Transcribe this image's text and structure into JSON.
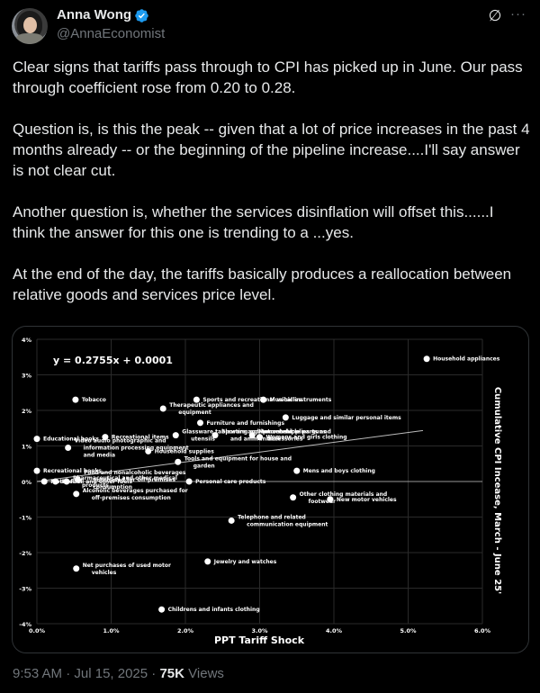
{
  "post": {
    "author_name": "Anna Wong",
    "author_handle": "@AnnaEconomist",
    "verified": true,
    "icons": {
      "grok": "grok-icon",
      "more": "more-icon",
      "verified": "verified-badge-icon"
    },
    "more_label": "···",
    "grok_label": "∅",
    "paragraphs": [
      "Clear signs that tariffs pass through to CPI has picked up in June. Our pass through coefficient rose from 0.20 to 0.28.",
      "Question is, is this the peak -- given that a lot of price increases in the past 4 months already -- or the beginning of the pipeline increase....I'll say answer is not clear cut.",
      "Another question is, whether the services disinflation will offset this......I think the answer for this one is trending to a ...yes.",
      "At the end of the day, the tariffs basically produces a reallocation between relative goods and services price level."
    ],
    "time": "9:53 AM",
    "separator": "·",
    "date": "Jul 15, 2025",
    "views_count": "75K",
    "views_label": "Views"
  },
  "chart_data": {
    "type": "scatter",
    "title": "",
    "annotation": "y = 0.2755x + 0.0001",
    "xlabel": "PPT Tariff Shock",
    "ylabel": "Cumulative CPI Incease, March - June 25'",
    "xlim": [
      0,
      6
    ],
    "ylim": [
      -4,
      4
    ],
    "x_ticks": [
      "0.0%",
      "1.0%",
      "2.0%",
      "3.0%",
      "4.0%",
      "5.0%",
      "6.0%"
    ],
    "y_ticks": [
      "4%",
      "3%",
      "2%",
      "1%",
      "0%",
      "-1%",
      "-2%",
      "-3%",
      "-4%"
    ],
    "grid": true,
    "trendline": {
      "slope": 0.2755,
      "intercept": 0.0001,
      "x_range": [
        0,
        5.2
      ]
    },
    "colors": {
      "background": "#000000",
      "points": "#ffffff",
      "grid": "#333333",
      "text": "#ffffff"
    },
    "points": [
      {
        "label": "Household appliances",
        "x": 5.25,
        "y": 3.45
      },
      {
        "label": "Tobacco",
        "x": 0.52,
        "y": 2.3
      },
      {
        "label": "Therapeutic appliances and equipment",
        "x": 1.7,
        "y": 2.05
      },
      {
        "label": "Sports and recreational vehicles",
        "x": 2.15,
        "y": 2.3
      },
      {
        "label": "Musical instruments",
        "x": 3.05,
        "y": 2.3
      },
      {
        "label": "Luggage and similar personal items",
        "x": 3.35,
        "y": 1.8
      },
      {
        "label": "Furniture and furnishings",
        "x": 2.2,
        "y": 1.65
      },
      {
        "label": "Educational books",
        "x": 0.0,
        "y": 1.2
      },
      {
        "label": "Recreational items",
        "x": 0.92,
        "y": 1.25
      },
      {
        "label": "Video audio photographic and information processing equipment and media",
        "x": 0.42,
        "y": 0.95
      },
      {
        "label": "Glassware tableware and household utensils",
        "x": 1.87,
        "y": 1.3
      },
      {
        "label": "Sporting equipment supplies guns and ammunition",
        "x": 2.4,
        "y": 1.3
      },
      {
        "label": "Motor vehicle parts and accessories",
        "x": 2.9,
        "y": 1.3
      },
      {
        "label": "Womens and girls clothing",
        "x": 3.0,
        "y": 1.25
      },
      {
        "label": "Household supplies",
        "x": 1.5,
        "y": 0.85
      },
      {
        "label": "Tools and equipment for house and garden",
        "x": 1.9,
        "y": 0.55
      },
      {
        "label": "Mens and boys clothing",
        "x": 3.5,
        "y": 0.3
      },
      {
        "label": "Recreational books",
        "x": 0.0,
        "y": 0.3
      },
      {
        "label": "Food and nonalcoholic beverages purchased for off-premises consumption",
        "x": 0.55,
        "y": 0.05
      },
      {
        "label": "Motor fuel",
        "x": 0.1,
        "y": 0.0
      },
      {
        "label": "Fuel oil and other fuels",
        "x": 0.25,
        "y": 0.0
      },
      {
        "label": "Pharmaceutical and other medical products",
        "x": 0.4,
        "y": 0.0
      },
      {
        "label": "Personal care products",
        "x": 2.05,
        "y": 0.0
      },
      {
        "label": "Alcoholic beverages purchased for off-premises consumption",
        "x": 0.53,
        "y": -0.35
      },
      {
        "label": "Other clothing materials and footwear",
        "x": 3.45,
        "y": -0.45
      },
      {
        "label": "New motor vehicles",
        "x": 3.95,
        "y": -0.5
      },
      {
        "label": "Telephone and related communication equipment",
        "x": 2.62,
        "y": -1.1
      },
      {
        "label": "Jewelry and watches",
        "x": 2.3,
        "y": -2.25
      },
      {
        "label": "Net purchases of used motor vehicles",
        "x": 0.53,
        "y": -2.45
      },
      {
        "label": "Childrens and infants clothing",
        "x": 1.68,
        "y": -3.6
      }
    ]
  }
}
